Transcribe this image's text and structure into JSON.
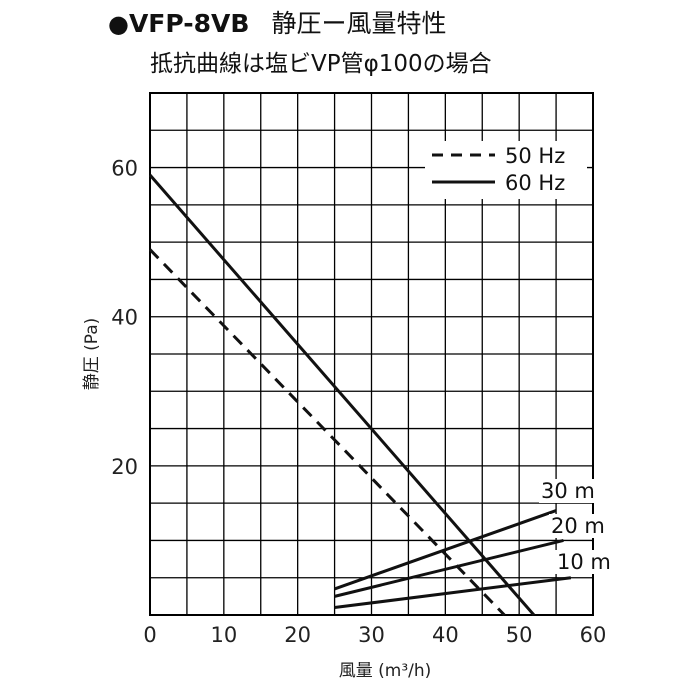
{
  "header": {
    "bullet": "●",
    "model": "VFP-8VB",
    "subtitle": "静圧ー風量特性",
    "line2": "抵抗曲線は塩ビVP管φ100の場合"
  },
  "chart_data": {
    "type": "line",
    "xlabel": "風量 (m³/h)",
    "ylabel": "静圧 (Pa)",
    "xlim": [
      0,
      60
    ],
    "ylim": [
      0,
      70
    ],
    "xticks": [
      0,
      10,
      20,
      30,
      40,
      50,
      60
    ],
    "yticks": [
      20,
      40,
      60
    ],
    "grid": true,
    "legend_position": "top-right",
    "series": [
      {
        "name": "50 Hz",
        "style": "dashed",
        "points": [
          [
            0,
            49
          ],
          [
            48,
            0
          ]
        ]
      },
      {
        "name": "60 Hz",
        "style": "solid",
        "points": [
          [
            0,
            59
          ],
          [
            52,
            0
          ]
        ]
      }
    ],
    "resistance_curves": [
      {
        "label": "30 m",
        "points": [
          [
            25,
            3.5
          ],
          [
            55,
            14
          ]
        ]
      },
      {
        "label": "20 m",
        "points": [
          [
            25,
            2.5
          ],
          [
            56,
            10
          ]
        ]
      },
      {
        "label": "10 m",
        "points": [
          [
            25,
            1.0
          ],
          [
            57,
            5
          ]
        ]
      }
    ]
  }
}
